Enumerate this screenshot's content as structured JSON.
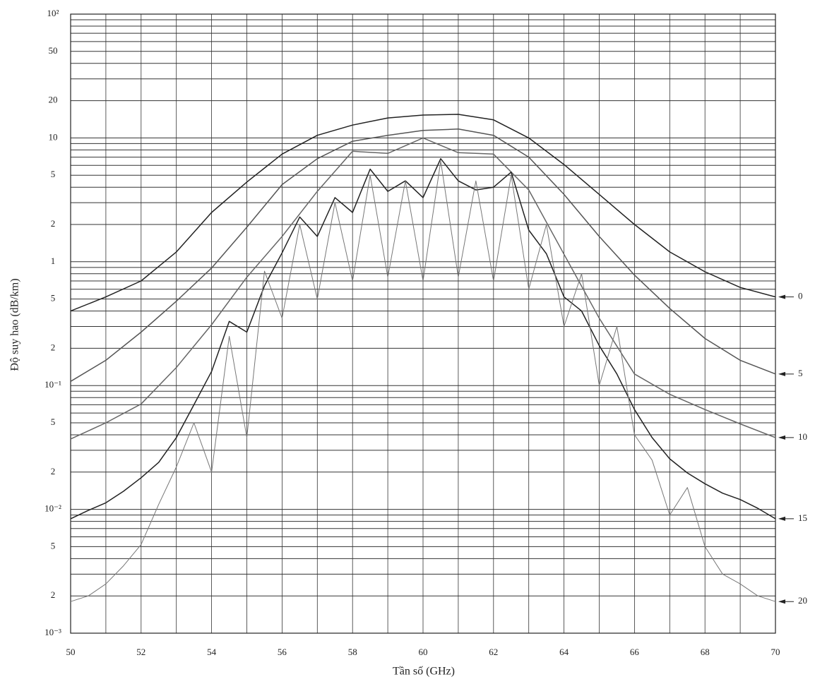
{
  "chart_data": {
    "type": "line",
    "x_label": "Tần số (GHz)",
    "y_label": "Độ suy hao (dB/km)",
    "log_y": true,
    "grid": true,
    "xlim": [
      50,
      70
    ],
    "xticks": [
      50,
      52,
      54,
      56,
      58,
      60,
      62,
      64,
      66,
      68,
      70
    ],
    "x_minor_gridlines": [
      51,
      53,
      55,
      57,
      59,
      61,
      63,
      65,
      67,
      69
    ],
    "ylim": [
      0.001,
      100
    ],
    "yticks": [
      {
        "value": 0.001,
        "label": "10⁻³"
      },
      {
        "value": 0.002,
        "label": "2"
      },
      {
        "value": 0.005,
        "label": "5"
      },
      {
        "value": 0.01,
        "label": "10⁻²"
      },
      {
        "value": 0.02,
        "label": "2"
      },
      {
        "value": 0.05,
        "label": "5"
      },
      {
        "value": 0.1,
        "label": "10⁻¹"
      },
      {
        "value": 0.2,
        "label": "2"
      },
      {
        "value": 0.5,
        "label": "5"
      },
      1,
      2,
      5,
      10,
      20,
      50,
      {
        "value": 100,
        "label": "10²"
      }
    ],
    "y_minor_gridlines": [
      0.003,
      0.004,
      0.006,
      0.007,
      0.008,
      0.009,
      0.03,
      0.04,
      0.06,
      0.07,
      0.08,
      0.09,
      0.3,
      0.4,
      0.6,
      0.7,
      0.8,
      0.9,
      3,
      4,
      6,
      7,
      8,
      9,
      30,
      40,
      60,
      70,
      80,
      90
    ],
    "series": [
      {
        "name": "0",
        "color": "#222222",
        "x": [
          50,
          51,
          52,
          53,
          54,
          55,
          56,
          57,
          58,
          59,
          60,
          61,
          62,
          63,
          64,
          65,
          66,
          67,
          68,
          69,
          70
        ],
        "values": [
          0.4,
          0.52,
          0.7,
          1.2,
          2.5,
          4.4,
          7.4,
          10.5,
          12.7,
          14.5,
          15.3,
          15.5,
          14,
          10,
          6.1,
          3.5,
          2.0,
          1.2,
          0.83,
          0.62,
          0.52
        ]
      },
      {
        "name": "5",
        "color": "#555555",
        "x": [
          50,
          51,
          52,
          53,
          54,
          55,
          56,
          57,
          58,
          59,
          60,
          61,
          62,
          63,
          64,
          65,
          66,
          67,
          68,
          69,
          70
        ],
        "values": [
          0.108,
          0.16,
          0.27,
          0.48,
          0.89,
          1.9,
          4.2,
          6.8,
          9.4,
          10.5,
          11.5,
          11.8,
          10.5,
          7.0,
          3.5,
          1.6,
          0.78,
          0.42,
          0.24,
          0.16,
          0.124
        ]
      },
      {
        "name": "10",
        "color": "#666666",
        "x": [
          50,
          51,
          52,
          53,
          54,
          55,
          56,
          57,
          58,
          59,
          60,
          61,
          62,
          63,
          64,
          65,
          66,
          67,
          68,
          69,
          70
        ],
        "values": [
          0.037,
          0.05,
          0.071,
          0.14,
          0.31,
          0.75,
          1.6,
          3.7,
          7.8,
          7.5,
          10,
          7.6,
          7.4,
          3.8,
          1.15,
          0.35,
          0.124,
          0.085,
          0.064,
          0.049,
          0.038
        ]
      },
      {
        "name": "15",
        "color": "#222222",
        "x": [
          50,
          50.5,
          51,
          51.5,
          52,
          52.5,
          53,
          53.5,
          54,
          54.5,
          55,
          55.5,
          56,
          56.5,
          57,
          57.5,
          58,
          58.5,
          59,
          59.5,
          60,
          60.5,
          61,
          61.5,
          62,
          62.5,
          63,
          63.5,
          64,
          64.5,
          65,
          65.5,
          66,
          66.5,
          67,
          67.5,
          68,
          68.5,
          69,
          69.5,
          70
        ],
        "values": [
          0.0084,
          0.0098,
          0.0113,
          0.014,
          0.018,
          0.024,
          0.038,
          0.07,
          0.13,
          0.33,
          0.27,
          0.64,
          1.18,
          2.3,
          1.6,
          3.3,
          2.5,
          5.6,
          3.7,
          4.5,
          3.3,
          6.8,
          4.5,
          3.8,
          4.0,
          5.3,
          1.8,
          1.16,
          0.52,
          0.4,
          0.21,
          0.124,
          0.064,
          0.038,
          0.0256,
          0.0197,
          0.0161,
          0.0135,
          0.012,
          0.0102,
          0.0084
        ]
      },
      {
        "name": "20",
        "color": "#777777",
        "x": [
          50,
          50.5,
          51,
          51.5,
          52,
          52.5,
          53,
          53.5,
          54,
          54.5,
          55,
          55.5,
          56,
          56.5,
          57,
          57.5,
          58,
          58.5,
          59,
          59.5,
          60,
          60.5,
          61,
          61.5,
          62,
          62.5,
          63,
          63.5,
          64,
          64.5,
          65,
          65.5,
          66,
          66.5,
          67,
          67.5,
          68,
          68.5,
          69,
          69.5,
          70
        ],
        "values": [
          0.0018,
          0.002,
          0.0025,
          0.0035,
          0.0052,
          0.011,
          0.022,
          0.05,
          0.02,
          0.25,
          0.038,
          0.84,
          0.35,
          2.0,
          0.5,
          3.0,
          0.7,
          5.0,
          0.75,
          4.5,
          0.7,
          6.5,
          0.75,
          4.5,
          0.7,
          5.0,
          0.6,
          2.0,
          0.3,
          0.8,
          0.1,
          0.3,
          0.04,
          0.025,
          0.009,
          0.015,
          0.005,
          0.003,
          0.0025,
          0.002,
          0.0018
        ]
      }
    ]
  }
}
